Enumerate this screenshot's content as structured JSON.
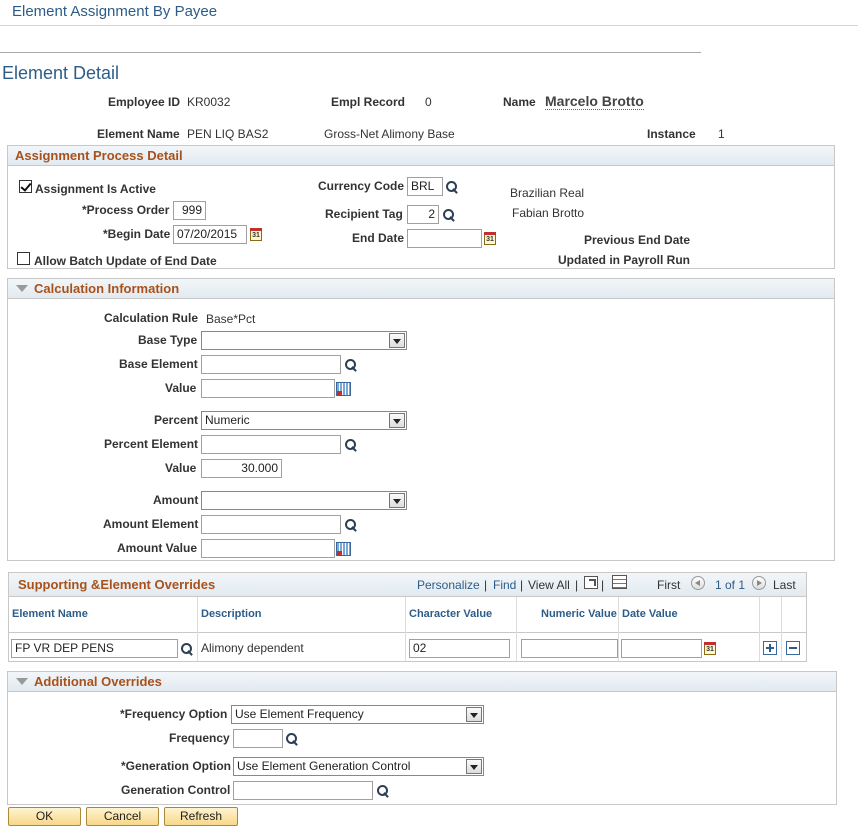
{
  "page": {
    "title": "Element Assignment By Payee"
  },
  "detail": {
    "title": "Element Detail",
    "employee_id_label": "Employee ID",
    "employee_id": "KR0032",
    "empl_record_label": "Empl Record",
    "empl_record": "0",
    "name_label": "Name",
    "name": "Marcelo Brotto",
    "element_name_label": "Element Name",
    "element_name": "PEN LIQ BAS2",
    "element_desc": "Gross-Net Alimony Base",
    "instance_label": "Instance",
    "instance": "1"
  },
  "assign": {
    "title": "Assignment Process Detail",
    "active_label": "Assignment Is Active",
    "active_checked": true,
    "process_order_label": "*Process Order",
    "process_order": "999",
    "begin_date_label": "*Begin Date",
    "begin_date": "07/20/2015",
    "batch_label": "Allow Batch Update of End Date",
    "batch_checked": false,
    "currency_label": "Currency Code",
    "currency": "BRL",
    "currency_desc": "Brazilian Real",
    "recipient_label": "Recipient Tag",
    "recipient": "2",
    "recipient_desc": "Fabian Brotto",
    "end_date_label": "End Date",
    "end_date": "",
    "prev_end_label": "Previous End Date",
    "updated_label": "Updated in Payroll Run"
  },
  "calc": {
    "title": "Calculation Information",
    "rule_label": "Calculation Rule",
    "rule": "Base*Pct",
    "base_type_label": "Base Type",
    "base_type": "",
    "base_element_label": "Base Element",
    "base_element": "",
    "value_label": "Value",
    "value1": "",
    "percent_label": "Percent",
    "percent": "Numeric",
    "percent_element_label": "Percent Element",
    "percent_element": "",
    "value2_label": "Value",
    "value2": "30.000",
    "amount_label": "Amount",
    "amount": "",
    "amount_element_label": "Amount Element",
    "amount_element": "",
    "amount_value_label": "Amount Value",
    "amount_value": ""
  },
  "overrides": {
    "title": "Supporting &Element Overrides",
    "personalize": "Personalize",
    "find": "Find",
    "view_all": "View All",
    "first": "First",
    "pager": "1 of 1",
    "last": "Last",
    "columns": [
      "Element Name",
      "Description",
      "Character Value",
      "Numeric Value",
      "Date Value"
    ],
    "row": {
      "element_name": "FP VR DEP PENS",
      "description": "Alimony dependent",
      "character_value": "02",
      "numeric_value": "",
      "date_value": ""
    }
  },
  "additional": {
    "title": "Additional Overrides",
    "freq_option_label": "*Frequency Option",
    "freq_option": "Use Element Frequency",
    "frequency_label": "Frequency",
    "frequency": "",
    "gen_option_label": "*Generation Option",
    "gen_option": "Use Element Generation Control",
    "gen_control_label": "Generation Control",
    "gen_control": ""
  },
  "buttons": {
    "ok": "OK",
    "cancel": "Cancel",
    "refresh": "Refresh"
  },
  "icons": {
    "lookup": "magnifier-icon",
    "calendar": "calendar-icon",
    "calculator": "calculator-icon",
    "calendar_glyph": "31"
  }
}
